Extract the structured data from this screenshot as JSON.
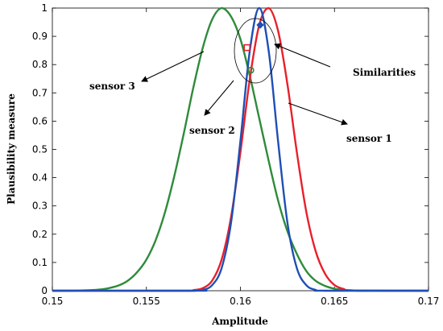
{
  "chart_data": {
    "type": "line",
    "title": "",
    "xlabel": "Amplitude",
    "ylabel": "Plausibility measure",
    "xlim": [
      0.15,
      0.17
    ],
    "ylim": [
      0,
      1
    ],
    "xticks": [
      0.15,
      0.155,
      0.16,
      0.165,
      0.17
    ],
    "yticks": [
      0,
      0.1,
      0.2,
      0.3,
      0.4,
      0.5,
      0.6,
      0.7,
      0.8,
      0.9,
      1
    ],
    "xtick_labels": [
      "0.15",
      "0.155",
      "0.16",
      "0.165",
      "0.17"
    ],
    "ytick_labels": [
      "0",
      "0.1",
      "0.2",
      "0.3",
      "0.4",
      "0.5",
      "0.6",
      "0.7",
      "0.8",
      "0.9",
      "1"
    ],
    "grid": false,
    "series": [
      {
        "name": "sensor 1",
        "color": "#e8202a",
        "x": [
          0.157,
          0.1575,
          0.158,
          0.1585,
          0.159,
          0.1595,
          0.16,
          0.1605,
          0.161,
          0.1615,
          0.162,
          0.1625,
          0.163,
          0.1635,
          0.164,
          0.1645,
          0.165,
          0.1655,
          0.166
        ],
        "values": [
          0.0,
          0.002,
          0.009,
          0.036,
          0.11,
          0.26,
          0.49,
          0.75,
          0.94,
          1.0,
          0.92,
          0.73,
          0.49,
          0.28,
          0.14,
          0.06,
          0.02,
          0.006,
          0.001
        ]
      },
      {
        "name": "sensor 2",
        "color": "#1f4fb5",
        "x": [
          0.1575,
          0.158,
          0.1585,
          0.159,
          0.1595,
          0.16,
          0.1605,
          0.161,
          0.1615,
          0.162,
          0.1625,
          0.163,
          0.1635,
          0.164,
          0.1645
        ],
        "values": [
          0.0,
          0.003,
          0.02,
          0.08,
          0.24,
          0.53,
          0.85,
          1.0,
          0.85,
          0.53,
          0.24,
          0.08,
          0.02,
          0.003,
          0.0
        ]
      },
      {
        "name": "sensor 3",
        "color": "#2e8b3a",
        "x": [
          0.151,
          0.1515,
          0.152,
          0.1525,
          0.153,
          0.1535,
          0.154,
          0.1545,
          0.155,
          0.1555,
          0.156,
          0.1565,
          0.157,
          0.1575,
          0.158,
          0.1585,
          0.159,
          0.1595,
          0.16,
          0.1605,
          0.161,
          0.1615,
          0.162,
          0.1625,
          0.163,
          0.1635,
          0.164,
          0.1645,
          0.165,
          0.1655,
          0.166,
          0.1665
        ],
        "values": [
          0.0,
          0.001,
          0.002,
          0.004,
          0.009,
          0.018,
          0.035,
          0.065,
          0.11,
          0.18,
          0.28,
          0.41,
          0.56,
          0.72,
          0.86,
          0.96,
          1.0,
          0.97,
          0.89,
          0.76,
          0.61,
          0.46,
          0.32,
          0.21,
          0.13,
          0.07,
          0.035,
          0.017,
          0.007,
          0.003,
          0.001,
          0.0
        ]
      }
    ],
    "markers": [
      {
        "series": "sensor 1",
        "shape": "diamond",
        "x": 0.16105,
        "y": 0.94,
        "color": "#1f4fb5"
      },
      {
        "series": "sensor 2",
        "shape": "circle",
        "x": 0.16055,
        "y": 0.78,
        "color": "#2e8b3a"
      },
      {
        "series": "sensor 3",
        "shape": "square",
        "x": 0.16035,
        "y": 0.86,
        "color": "#e8202a"
      }
    ],
    "annotations": {
      "similarities": "Similarities",
      "sensor1": "sensor 1",
      "sensor2": "sensor 2",
      "sensor3": "sensor 3"
    }
  }
}
